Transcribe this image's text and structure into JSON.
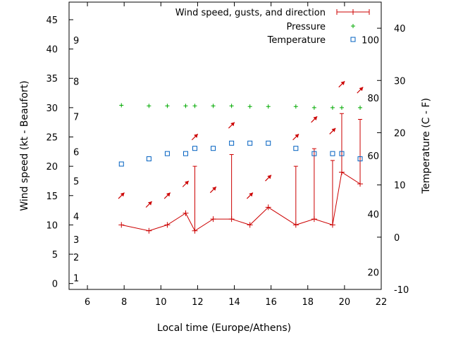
{
  "chart_data": {
    "type": "line",
    "xlabel": "Local time (Europe/Athens)",
    "ylabel": "Wind speed (kt - Beaufort)",
    "y2label": "Temperature (C - F)",
    "xlim": [
      5,
      22
    ],
    "ylim": [
      -1,
      48
    ],
    "y2lim": [
      -10,
      45
    ],
    "x_ticks": [
      "6",
      "8",
      "10",
      "12",
      "14",
      "16",
      "18",
      "20",
      "22"
    ],
    "y_ticks": [
      "0",
      "5",
      "10",
      "15",
      "20",
      "25",
      "30",
      "35",
      "40",
      "45"
    ],
    "y2_ticks": [
      "-10",
      "0",
      "10",
      "20",
      "30",
      "40"
    ],
    "beaufort_labels": [
      {
        "text": "1",
        "y": 1
      },
      {
        "text": "2",
        "y": 4.5
      },
      {
        "text": "3",
        "y": 7.5
      },
      {
        "text": "4",
        "y": 11.5
      },
      {
        "text": "5",
        "y": 17.5
      },
      {
        "text": "6",
        "y": 22.5
      },
      {
        "text": "7",
        "y": 28.5
      },
      {
        "text": "8",
        "y": 34.5
      },
      {
        "text": "9",
        "y": 41.5
      }
    ],
    "fahrenheit_labels": [
      {
        "text": "20",
        "y2": -6.7
      },
      {
        "text": "40",
        "y2": 4.4
      },
      {
        "text": "60",
        "y2": 15.6
      },
      {
        "text": "80",
        "y2": 26.7
      },
      {
        "text": "100",
        "y2": 37.8
      }
    ],
    "legend_position": "top-right",
    "series": [
      {
        "name": "Wind speed, gusts, and direction",
        "color": "#cc0000",
        "x": [
          7.85,
          9.35,
          10.35,
          11.35,
          11.85,
          12.85,
          13.85,
          14.85,
          15.85,
          17.35,
          18.35,
          19.35,
          19.85,
          20.85
        ],
        "values": [
          10,
          9,
          10,
          12,
          9,
          11,
          11,
          10,
          13,
          10,
          11,
          10,
          19,
          17
        ],
        "gusts": [
          null,
          null,
          null,
          null,
          20,
          null,
          22,
          null,
          null,
          20,
          23,
          21,
          29,
          28
        ],
        "direction_deg": [
          225,
          225,
          225,
          225,
          225,
          225,
          225,
          225,
          225,
          225,
          225,
          225,
          225,
          225
        ],
        "arrow_y": [
          15,
          13.5,
          15,
          17,
          25,
          16,
          27,
          15,
          18,
          25,
          28,
          26,
          34,
          33
        ]
      },
      {
        "name": "Pressure",
        "color": "#00aa00",
        "x": [
          7.85,
          9.35,
          10.35,
          11.35,
          11.85,
          12.85,
          13.85,
          14.85,
          15.85,
          17.35,
          18.35,
          19.35,
          19.85,
          20.85
        ],
        "values": [
          30.4,
          30.3,
          30.3,
          30.3,
          30.3,
          30.3,
          30.3,
          30.2,
          30.2,
          30.2,
          30.0,
          30.0,
          30.0,
          30.0
        ]
      },
      {
        "name": "Temperature",
        "color": "#0060c0",
        "x": [
          7.85,
          9.35,
          10.35,
          11.35,
          11.85,
          12.85,
          13.85,
          14.85,
          15.85,
          17.35,
          18.35,
          19.35,
          19.85,
          20.85
        ],
        "values": [
          14,
          15,
          16,
          16,
          17,
          17,
          18,
          18,
          18,
          17,
          16,
          16,
          16,
          15
        ]
      }
    ]
  }
}
